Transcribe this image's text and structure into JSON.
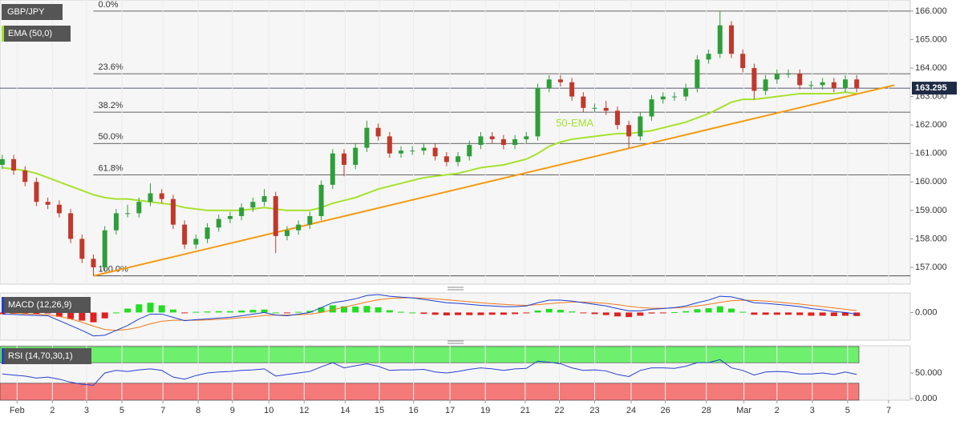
{
  "chart_data": [
    {
      "type": "candlestick",
      "title": "GBP/JPY",
      "indicator": "EMA (50,0)",
      "annotation": "50-EMA",
      "xlim": [
        -0.2,
        79.7
      ],
      "ylim": [
        156.41,
        166.39
      ],
      "yticks": [
        {
          "value": 157,
          "label": "157.000"
        },
        {
          "value": 158,
          "label": "158.000"
        },
        {
          "value": 159,
          "label": "159.000"
        },
        {
          "value": 160,
          "label": "160.000"
        },
        {
          "value": 161,
          "label": "161.000"
        },
        {
          "value": 162,
          "label": "162.000"
        },
        {
          "value": 163,
          "label": "163.000"
        },
        {
          "value": 164,
          "label": "164.000"
        },
        {
          "value": 165,
          "label": "165.000"
        },
        {
          "value": 166,
          "label": "166.000"
        }
      ],
      "up_color": "#2e9e3a",
      "down_color": "#c0392b",
      "candles": [
        [
          160.6,
          160.95,
          160.45,
          160.8
        ],
        [
          160.8,
          160.95,
          160.25,
          160.4
        ],
        [
          160.4,
          160.55,
          159.85,
          160.0
        ],
        [
          160.0,
          160.15,
          159.15,
          159.3
        ],
        [
          159.3,
          159.45,
          159.05,
          159.2
        ],
        [
          159.2,
          159.35,
          158.75,
          158.9
        ],
        [
          158.9,
          159.05,
          157.85,
          158.0
        ],
        [
          158.0,
          158.15,
          157.15,
          157.3
        ],
        [
          157.3,
          157.45,
          156.7,
          157.0
        ],
        [
          157.0,
          158.45,
          156.85,
          158.3
        ],
        [
          158.3,
          159.05,
          158.15,
          158.9
        ],
        [
          158.9,
          159.2,
          158.75,
          158.9
        ],
        [
          158.9,
          159.45,
          158.75,
          159.3
        ],
        [
          159.3,
          159.95,
          159.15,
          159.6
        ],
        [
          159.6,
          159.75,
          159.25,
          159.4
        ],
        [
          159.4,
          159.55,
          158.35,
          158.5
        ],
        [
          158.5,
          158.65,
          157.65,
          157.8
        ],
        [
          157.8,
          158.15,
          157.65,
          158.0
        ],
        [
          158.0,
          158.55,
          157.85,
          158.4
        ],
        [
          158.4,
          158.85,
          158.25,
          158.7
        ],
        [
          158.7,
          158.95,
          158.55,
          158.8
        ],
        [
          158.8,
          159.25,
          158.65,
          159.1
        ],
        [
          159.1,
          159.45,
          158.95,
          159.3
        ],
        [
          159.3,
          159.75,
          159.15,
          159.5
        ],
        [
          159.5,
          159.65,
          157.5,
          158.1
        ],
        [
          158.1,
          158.45,
          157.95,
          158.3
        ],
        [
          158.3,
          158.65,
          158.15,
          158.5
        ],
        [
          158.5,
          158.95,
          158.35,
          158.8
        ],
        [
          158.8,
          160.05,
          158.65,
          159.9
        ],
        [
          159.9,
          161.15,
          159.75,
          161.0
        ],
        [
          161.0,
          161.15,
          160.2,
          160.6
        ],
        [
          160.6,
          161.35,
          160.45,
          161.2
        ],
        [
          161.2,
          162.15,
          161.05,
          161.9
        ],
        [
          161.9,
          162.05,
          161.45,
          161.6
        ],
        [
          161.6,
          161.75,
          160.85,
          161.0
        ],
        [
          161.0,
          161.25,
          160.85,
          161.1
        ],
        [
          161.1,
          161.25,
          160.95,
          161.1
        ],
        [
          161.1,
          161.35,
          160.95,
          161.2
        ],
        [
          161.2,
          161.35,
          160.75,
          160.9
        ],
        [
          160.9,
          161.05,
          160.55,
          160.7
        ],
        [
          160.7,
          161.05,
          160.55,
          160.9
        ],
        [
          160.9,
          161.45,
          160.75,
          161.3
        ],
        [
          161.3,
          161.75,
          161.15,
          161.6
        ],
        [
          161.6,
          161.75,
          161.35,
          161.5
        ],
        [
          161.5,
          161.65,
          161.15,
          161.3
        ],
        [
          161.3,
          161.65,
          161.15,
          161.5
        ],
        [
          161.5,
          161.75,
          161.35,
          161.6
        ],
        [
          161.6,
          163.45,
          161.45,
          163.3
        ],
        [
          163.3,
          163.75,
          163.15,
          163.6
        ],
        [
          163.6,
          163.75,
          163.35,
          163.5
        ],
        [
          163.5,
          163.65,
          162.85,
          163.0
        ],
        [
          163.0,
          163.15,
          162.45,
          162.6
        ],
        [
          162.6,
          162.75,
          162.45,
          162.6
        ],
        [
          162.6,
          162.85,
          162.35,
          162.5
        ],
        [
          162.5,
          162.65,
          161.85,
          162.0
        ],
        [
          162.0,
          162.15,
          161.2,
          161.6
        ],
        [
          161.6,
          162.45,
          161.45,
          162.3
        ],
        [
          162.3,
          163.05,
          162.15,
          162.9
        ],
        [
          162.9,
          163.15,
          162.75,
          163.0
        ],
        [
          163.0,
          163.15,
          162.85,
          163.0
        ],
        [
          163.0,
          163.45,
          162.85,
          163.3
        ],
        [
          163.3,
          164.45,
          163.15,
          164.3
        ],
        [
          164.3,
          164.65,
          164.15,
          164.5
        ],
        [
          164.5,
          166.0,
          164.35,
          165.5
        ],
        [
          165.5,
          165.65,
          164.35,
          164.5
        ],
        [
          164.5,
          164.65,
          163.85,
          164.0
        ],
        [
          164.0,
          164.15,
          162.9,
          163.2
        ],
        [
          163.2,
          163.75,
          163.05,
          163.6
        ],
        [
          163.6,
          163.95,
          163.45,
          163.8
        ],
        [
          163.8,
          163.95,
          163.65,
          163.8
        ],
        [
          163.8,
          163.95,
          163.25,
          163.4
        ],
        [
          163.4,
          163.55,
          163.25,
          163.4
        ],
        [
          163.4,
          163.65,
          163.25,
          163.5
        ],
        [
          163.5,
          163.65,
          163.15,
          163.3
        ],
        [
          163.3,
          163.75,
          163.15,
          163.6
        ],
        [
          163.6,
          163.75,
          163.15,
          163.3
        ]
      ],
      "ema": {
        "color": "#a6e22e",
        "values": [
          160.5,
          160.45,
          160.4,
          160.3,
          160.15,
          160.0,
          159.85,
          159.7,
          159.55,
          159.45,
          159.4,
          159.4,
          159.35,
          159.3,
          159.25,
          159.2,
          159.1,
          159.05,
          159.0,
          159.0,
          159.0,
          159.0,
          159.05,
          159.1,
          159.05,
          159.0,
          159.0,
          159.0,
          159.1,
          159.25,
          159.35,
          159.45,
          159.6,
          159.75,
          159.85,
          159.95,
          160.05,
          160.15,
          160.2,
          160.25,
          160.3,
          160.4,
          160.5,
          160.55,
          160.6,
          160.7,
          160.8,
          161.0,
          161.25,
          161.4,
          161.5,
          161.55,
          161.6,
          161.65,
          161.7,
          161.7,
          161.75,
          161.8,
          161.9,
          162.0,
          162.1,
          162.25,
          162.4,
          162.6,
          162.8,
          162.9,
          162.9,
          162.95,
          163.0,
          163.05,
          163.1,
          163.1,
          163.1,
          163.1,
          163.15,
          163.1
        ]
      },
      "trendline": {
        "color": "#f39c12",
        "x": [
          8,
          78.3
        ],
        "y": [
          156.7,
          163.4
        ]
      },
      "fib": [
        {
          "label": "0.0%",
          "value": 166.0
        },
        {
          "label": "23.6%",
          "value": 163.8
        },
        {
          "label": "38.2%",
          "value": 162.45
        },
        {
          "label": "50.0%",
          "value": 161.35
        },
        {
          "label": "61.8%",
          "value": 160.25
        },
        {
          "label": "100.0%",
          "value": 156.7
        }
      ],
      "last_price": 163.295
    },
    {
      "type": "macd",
      "title": "MACD (12,26,9)",
      "xlim": [
        -0.2,
        79.7
      ],
      "ylim": [
        -0.85,
        0.6
      ],
      "yticks": [
        {
          "value": 0,
          "label": "0.000"
        }
      ],
      "up_color": "#22dd22",
      "down_color": "#e02020",
      "macd": {
        "color": "#1e3fcf",
        "values": [
          -0.05,
          -0.06,
          -0.08,
          -0.09,
          -0.1,
          -0.25,
          -0.4,
          -0.55,
          -0.72,
          -0.7,
          -0.55,
          -0.4,
          -0.2,
          -0.05,
          -0.05,
          -0.15,
          -0.25,
          -0.22,
          -0.2,
          -0.17,
          -0.15,
          -0.1,
          -0.05,
          0.0,
          -0.08,
          -0.1,
          -0.05,
          0.0,
          0.15,
          0.3,
          0.35,
          0.42,
          0.52,
          0.55,
          0.5,
          0.47,
          0.45,
          0.4,
          0.35,
          0.3,
          0.28,
          0.25,
          0.22,
          0.2,
          0.18,
          0.18,
          0.2,
          0.3,
          0.38,
          0.38,
          0.35,
          0.3,
          0.25,
          0.2,
          0.12,
          0.05,
          0.05,
          0.1,
          0.12,
          0.15,
          0.2,
          0.3,
          0.38,
          0.5,
          0.48,
          0.4,
          0.3,
          0.28,
          0.25,
          0.22,
          0.18,
          0.12,
          0.08,
          0.03,
          0.0,
          -0.05
        ]
      },
      "signal": {
        "color": "#f07a1a",
        "values": [
          0.0,
          -0.02,
          -0.04,
          -0.05,
          -0.07,
          -0.12,
          -0.2,
          -0.3,
          -0.42,
          -0.52,
          -0.55,
          -0.52,
          -0.45,
          -0.35,
          -0.27,
          -0.24,
          -0.24,
          -0.24,
          -0.23,
          -0.21,
          -0.19,
          -0.16,
          -0.13,
          -0.09,
          -0.08,
          -0.08,
          -0.07,
          -0.05,
          0.0,
          0.08,
          0.16,
          0.24,
          0.32,
          0.39,
          0.43,
          0.45,
          0.45,
          0.44,
          0.42,
          0.39,
          0.36,
          0.33,
          0.3,
          0.27,
          0.25,
          0.23,
          0.22,
          0.24,
          0.27,
          0.3,
          0.32,
          0.32,
          0.3,
          0.28,
          0.24,
          0.19,
          0.15,
          0.13,
          0.13,
          0.14,
          0.16,
          0.2,
          0.25,
          0.31,
          0.36,
          0.38,
          0.37,
          0.35,
          0.32,
          0.29,
          0.26,
          0.22,
          0.18,
          0.14,
          0.1,
          0.06
        ]
      },
      "histogram": [
        -0.05,
        -0.04,
        -0.04,
        -0.04,
        -0.03,
        -0.13,
        -0.2,
        -0.25,
        -0.3,
        -0.18,
        0.0,
        0.12,
        0.25,
        0.3,
        0.22,
        0.09,
        -0.01,
        0.02,
        0.03,
        0.04,
        0.04,
        0.06,
        0.08,
        0.09,
        0.0,
        -0.02,
        0.02,
        0.05,
        0.15,
        0.22,
        0.19,
        0.18,
        0.2,
        0.16,
        0.07,
        0.02,
        0.0,
        -0.04,
        -0.07,
        -0.09,
        -0.08,
        -0.08,
        -0.08,
        -0.07,
        -0.07,
        -0.05,
        -0.02,
        0.06,
        0.11,
        0.08,
        0.03,
        -0.02,
        -0.05,
        -0.08,
        -0.12,
        -0.14,
        -0.1,
        -0.03,
        -0.01,
        0.01,
        0.04,
        0.1,
        0.13,
        0.19,
        0.12,
        0.02,
        -0.07,
        -0.07,
        -0.07,
        -0.07,
        -0.08,
        -0.1,
        -0.1,
        -0.11,
        -0.1,
        -0.11
      ]
    },
    {
      "type": "rsi",
      "title": "RSI (14,70,30,1)",
      "xlim": [
        -0.2,
        79.7
      ],
      "ylim": [
        -3,
        103
      ],
      "yticks": [
        {
          "value": 0,
          "label": "0.000"
        },
        {
          "value": 50,
          "label": "50.000"
        }
      ],
      "overbought": 70,
      "oversold": 30,
      "overbought_color": "#6ef06e",
      "oversold_color": "#f47a7a",
      "color": "#2a3fd0",
      "values": [
        48,
        46,
        44,
        40,
        42,
        38,
        32,
        28,
        26,
        50,
        55,
        53,
        56,
        58,
        55,
        42,
        38,
        45,
        50,
        52,
        53,
        55,
        56,
        58,
        44,
        47,
        50,
        53,
        62,
        70,
        60,
        64,
        68,
        63,
        55,
        56,
        56,
        57,
        52,
        50,
        53,
        57,
        60,
        58,
        55,
        58,
        59,
        73,
        71,
        68,
        60,
        55,
        56,
        54,
        47,
        43,
        55,
        60,
        60,
        59,
        63,
        70,
        70,
        76,
        60,
        55,
        46,
        52,
        53,
        52,
        48,
        48,
        50,
        47,
        52,
        47
      ],
      "xticks": [
        {
          "value": 1.3,
          "label": "Feb"
        },
        {
          "value": 4.4,
          "label": "2"
        },
        {
          "value": 7.4,
          "label": "3"
        },
        {
          "value": 10.5,
          "label": "5"
        },
        {
          "value": 14.1,
          "label": "7"
        },
        {
          "value": 17.2,
          "label": "8"
        },
        {
          "value": 20.2,
          "label": "9"
        },
        {
          "value": 23.4,
          "label": "10"
        },
        {
          "value": 26.5,
          "label": "12"
        },
        {
          "value": 30.1,
          "label": "14"
        },
        {
          "value": 33.1,
          "label": "15"
        },
        {
          "value": 36.1,
          "label": "16"
        },
        {
          "value": 39.3,
          "label": "17"
        },
        {
          "value": 42.4,
          "label": "19"
        },
        {
          "value": 45.9,
          "label": "21"
        },
        {
          "value": 48.9,
          "label": "22"
        },
        {
          "value": 52.0,
          "label": "23"
        },
        {
          "value": 55.2,
          "label": "24"
        },
        {
          "value": 58.2,
          "label": "26"
        },
        {
          "value": 61.8,
          "label": "28"
        },
        {
          "value": 65.1,
          "label": "Mar"
        },
        {
          "value": 68.0,
          "label": "2"
        },
        {
          "value": 71.1,
          "label": "3"
        },
        {
          "value": 74.2,
          "label": "5"
        },
        {
          "value": 77.8,
          "label": "7"
        }
      ]
    }
  ]
}
